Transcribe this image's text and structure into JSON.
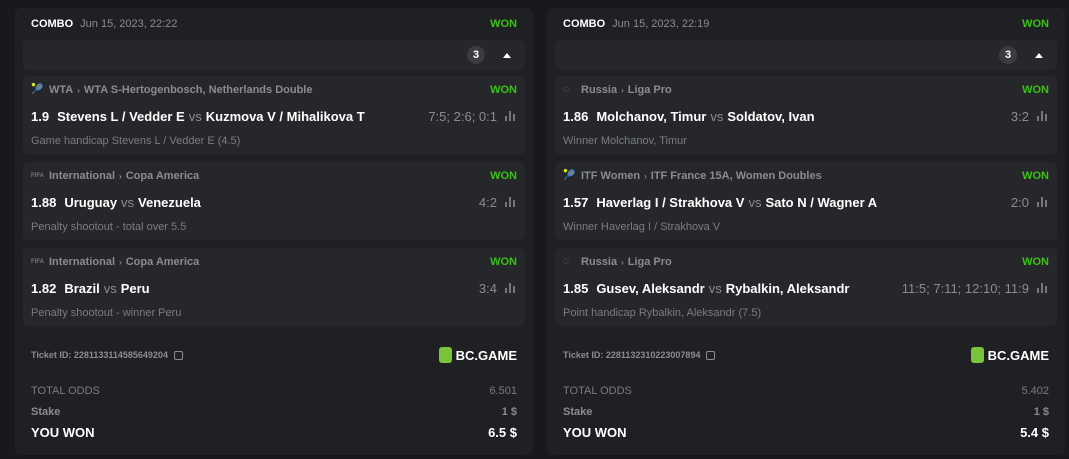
{
  "tickets": [
    {
      "type": "COMBO",
      "date": "Jun 15, 2023, 22:22",
      "status": "WON",
      "count": "3",
      "legs": [
        {
          "sport_icon": "tennis-icon",
          "category": "WTA",
          "tournament": "WTA S-Hertogenbosch, Netherlands Double",
          "status": "WON",
          "odds": "1.9",
          "home": "Stevens L / Vedder E",
          "vs": "vs",
          "away": "Kuzmova V / Mihalikova T",
          "score": "7:5; 2:6; 0:1",
          "market": "Game handicap Stevens L / Vedder E (4.5)"
        },
        {
          "sport_icon": "fifa-icon",
          "category": "International",
          "tournament": "Copa America",
          "status": "WON",
          "odds": "1.88",
          "home": "Uruguay",
          "vs": "vs",
          "away": "Venezuela",
          "score": "4:2",
          "market": "Penalty shootout - total over 5.5"
        },
        {
          "sport_icon": "fifa-icon",
          "category": "International",
          "tournament": "Copa America",
          "status": "WON",
          "odds": "1.82",
          "home": "Brazil",
          "vs": "vs",
          "away": "Peru",
          "score": "3:4",
          "market": "Penalty shootout - winner Peru"
        }
      ],
      "ticket_id": "Ticket ID: 2281133114585649204",
      "brand": "BC.GAME",
      "total_odds_label": "TOTAL ODDS",
      "total_odds": "6.501",
      "stake_label": "Stake",
      "stake": "1 $",
      "won_label": "YOU WON",
      "won": "6.5 $"
    },
    {
      "type": "COMBO",
      "date": "Jun 15, 2023, 22:19",
      "status": "WON",
      "count": "3",
      "legs": [
        {
          "sport_icon": "table-tennis-icon",
          "category": "Russia",
          "tournament": "Liga Pro",
          "status": "WON",
          "odds": "1.86",
          "home": "Molchanov, Timur",
          "vs": "vs",
          "away": "Soldatov, Ivan",
          "score": "3:2",
          "market": "Winner Molchanov, Timur"
        },
        {
          "sport_icon": "tennis-icon",
          "category": "ITF Women",
          "tournament": "ITF France 15A, Women Doubles",
          "status": "WON",
          "odds": "1.57",
          "home": "Haverlag I / Strakhova V",
          "vs": "vs",
          "away": "Sato N / Wagner A",
          "score": "2:0",
          "market": "Winner Haverlag I / Strakhova V"
        },
        {
          "sport_icon": "table-tennis-icon",
          "category": "Russia",
          "tournament": "Liga Pro",
          "status": "WON",
          "odds": "1.85",
          "home": "Gusev, Aleksandr",
          "vs": "vs",
          "away": "Rybalkin, Aleksandr",
          "score": "11:5; 7:11; 12:10; 11:9",
          "market": "Point handicap Rybalkin, Aleksandr (7.5)"
        }
      ],
      "ticket_id": "Ticket ID: 2281132310223007894",
      "brand": "BC.GAME",
      "total_odds_label": "TOTAL ODDS",
      "total_odds": "5.402",
      "stake_label": "Stake",
      "stake": "1 $",
      "won_label": "YOU WON",
      "won": "5.4 $"
    }
  ]
}
